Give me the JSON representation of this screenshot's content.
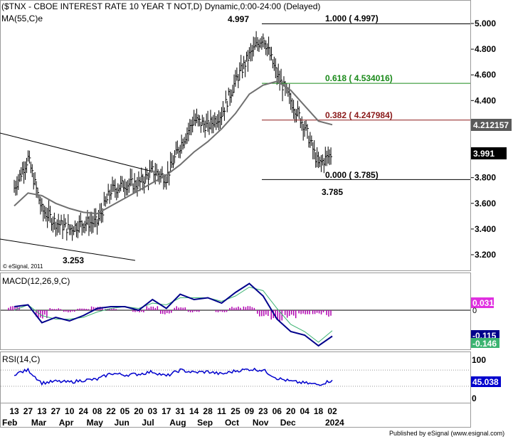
{
  "title": "($TNX - CBOE INTEREST RATE 10 YEAR T NOT,D) Dynamic,0:00-24:00 (Delayed)",
  "ma_label": "MA(55,C)e",
  "copyright": "© eSignal, 2011",
  "footer": "Published by eSignal (www.esignal.com)",
  "colors": {
    "candles": "#000000",
    "ma": "#707070",
    "fib_green": "#1a8a1a",
    "fib_red": "#8b1a1a",
    "macd_line": "#00008b",
    "macd_signal": "#3cb371",
    "histogram": "#b000b0",
    "rsi_line": "#0000cd"
  },
  "chart_data": [
    {
      "type": "line",
      "panel": "price",
      "description_label": "CBOE Interest Rate 10 Year T-Note daily",
      "x": [
        "13 Feb",
        "27 Feb",
        "13 Mar",
        "27 Mar",
        "10 Apr",
        "24 Apr",
        "08 May",
        "22 May",
        "05 Jun",
        "20 Jun",
        "03 Jul",
        "17 Jul",
        "31 Jul",
        "14 Aug",
        "28 Aug",
        "11 Sep",
        "25 Sep",
        "09 Oct",
        "23 Oct",
        "06 Nov",
        "20 Nov",
        "04 Dec",
        "18 Dec",
        "02 Jan"
      ],
      "series": [
        {
          "name": "$TNX",
          "values": [
            3.72,
            3.95,
            3.55,
            3.45,
            3.4,
            3.45,
            3.45,
            3.7,
            3.75,
            3.75,
            3.85,
            3.8,
            4.05,
            4.25,
            4.2,
            4.3,
            4.55,
            4.75,
            4.9,
            4.6,
            4.4,
            4.2,
            3.9,
            3.991
          ]
        },
        {
          "name": "MA(55,C)e",
          "values": [
            3.58,
            3.68,
            3.66,
            3.6,
            3.56,
            3.53,
            3.52,
            3.58,
            3.64,
            3.7,
            3.76,
            3.82,
            3.9,
            4.0,
            4.08,
            4.18,
            4.3,
            4.45,
            4.52,
            4.55,
            4.48,
            4.36,
            4.24,
            4.212
          ]
        }
      ],
      "ylim": [
        3.1,
        5.05
      ],
      "y_ticks": [
        "5.000",
        "4.800",
        "4.600",
        "4.400",
        "4.200",
        "4.000",
        "3.800",
        "3.600",
        "3.400",
        "3.200"
      ],
      "last_price": "3.991",
      "ma_value": "4.212157",
      "fib_levels": [
        {
          "label": "1.000 ( 4.997)",
          "value": 4.997
        },
        {
          "label": "0.618 ( 4.534016)",
          "value": 4.534016
        },
        {
          "label": "0.382 ( 4.247984)",
          "value": 4.247984
        },
        {
          "label": "0.000 ( 3.785)",
          "value": 3.785
        }
      ],
      "annotations": [
        "4.997",
        "3.785",
        "3.253"
      ]
    },
    {
      "type": "line",
      "panel": "macd",
      "label": "MACD(12,26,9,C)",
      "series": [
        {
          "name": "MACD",
          "values": [
            0.02,
            0.03,
            -0.07,
            -0.04,
            -0.06,
            -0.03,
            0.01,
            0.02,
            0.02,
            0.0,
            0.06,
            0.01,
            0.09,
            0.06,
            0.07,
            0.04,
            0.1,
            0.15,
            0.08,
            -0.05,
            -0.12,
            -0.14,
            -0.2,
            -0.146
          ]
        },
        {
          "name": "Signal",
          "values": [
            0.0,
            0.03,
            -0.03,
            -0.05,
            -0.05,
            -0.04,
            -0.01,
            0.01,
            0.02,
            0.01,
            0.04,
            0.03,
            0.07,
            0.07,
            0.07,
            0.05,
            0.08,
            0.13,
            0.11,
            0.01,
            -0.08,
            -0.12,
            -0.18,
            -0.115
          ]
        }
      ],
      "values_shown": [
        "0.031",
        "0",
        "-0.115",
        "-0.146"
      ]
    },
    {
      "type": "line",
      "panel": "rsi",
      "label": "RSI(14,C)",
      "series": [
        {
          "name": "RSI(14,C)",
          "values": [
            60,
            70,
            38,
            42,
            40,
            45,
            47,
            62,
            58,
            60,
            66,
            55,
            70,
            64,
            66,
            60,
            68,
            72,
            70,
            50,
            42,
            38,
            34,
            45.038
          ]
        }
      ],
      "y_ticks": [
        "100",
        "0"
      ],
      "last_value": "45.038"
    }
  ],
  "x_axis": {
    "days": [
      "13",
      "27",
      "13",
      "27",
      "10",
      "24",
      "08",
      "22",
      "05",
      "20",
      "03",
      "17",
      "31",
      "14",
      "28",
      "11",
      "25",
      "09",
      "23",
      "06",
      "20",
      "04",
      "18",
      "02"
    ],
    "months": [
      "Feb",
      "Mar",
      "Apr",
      "May",
      "Jun",
      "Jul",
      "Aug",
      "Sep",
      "Oct",
      "Nov",
      "Dec",
      "2024"
    ]
  }
}
